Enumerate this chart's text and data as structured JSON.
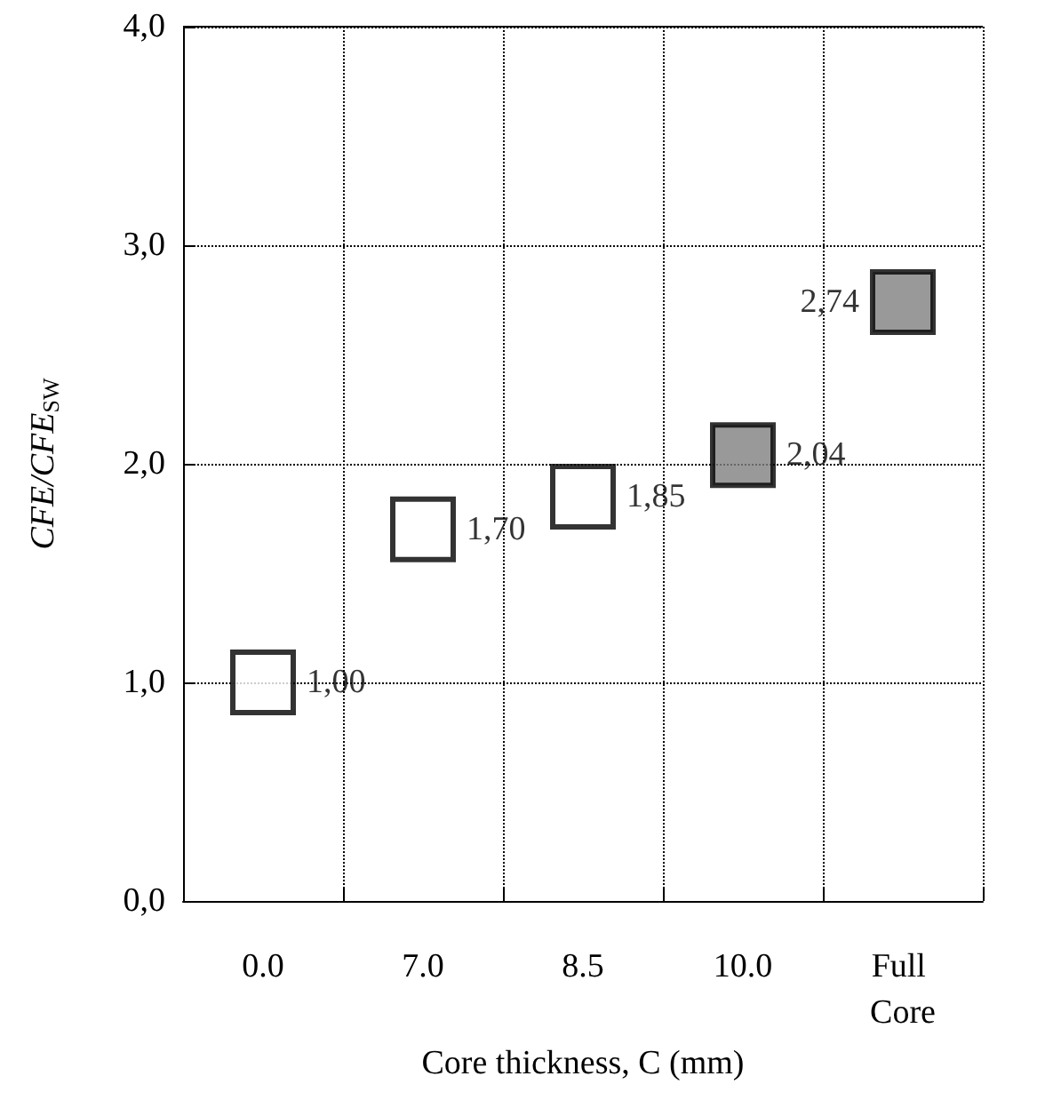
{
  "chart_data": {
    "type": "scatter",
    "xlabel": "Core thickness, C (mm)",
    "ylabel": "CFE/CFE$_{SW}$",
    "categories": [
      "0.0",
      "7.0",
      "8.5",
      "10.0",
      "Full Core"
    ],
    "values": [
      1.0,
      1.7,
      1.85,
      2.04,
      2.74
    ],
    "value_labels": [
      "1,00",
      "1,70",
      "1,85",
      "2,04",
      "2,74"
    ],
    "colors": [
      "#ffffff",
      "#ffffff",
      "#ffffff",
      "#808080",
      "#808080"
    ],
    "ylim": [
      0,
      4
    ],
    "yticks": [
      {
        "value": 0,
        "label": "0,0"
      },
      {
        "value": 1,
        "label": "1,0"
      },
      {
        "value": 2,
        "label": "2,0"
      },
      {
        "value": 3,
        "label": "3,0"
      },
      {
        "value": 4,
        "label": "4,0"
      }
    ],
    "grid": true,
    "marker": "square"
  }
}
